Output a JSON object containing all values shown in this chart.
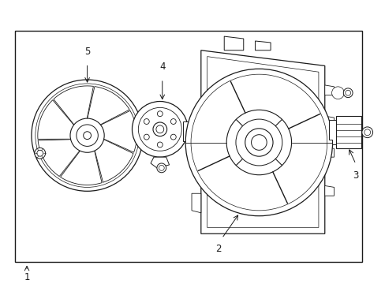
{
  "bg_color": "#ffffff",
  "line_color": "#1a1a1a",
  "fig_width": 4.89,
  "fig_height": 3.6,
  "dpi": 100,
  "label_1": "1",
  "label_2": "2",
  "label_3": "3",
  "label_4": "4",
  "label_5": "5",
  "font_size": 8.5,
  "border": [
    15,
    22,
    448,
    298
  ]
}
